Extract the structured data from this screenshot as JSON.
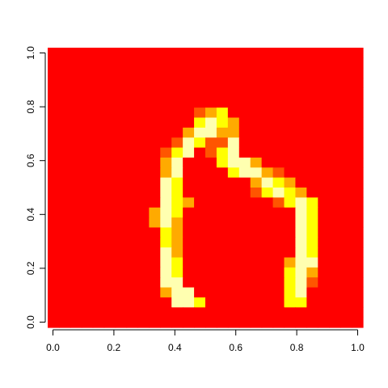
{
  "chart_data": {
    "type": "heatmap",
    "title": "",
    "xlabel": "",
    "ylabel": "",
    "xlim": [
      0,
      1
    ],
    "ylim": [
      0,
      1
    ],
    "grid": false,
    "x_ticks": [
      "0.0",
      "0.2",
      "0.4",
      "0.6",
      "0.8",
      "1.0"
    ],
    "y_ticks": [
      "0.0",
      "0.2",
      "0.4",
      "0.6",
      "0.8",
      "1.0"
    ],
    "x_tick_values": [
      0,
      0.2,
      0.4,
      0.6,
      0.8,
      1.0
    ],
    "y_tick_values": [
      0,
      0.2,
      0.4,
      0.6,
      0.8,
      1.0
    ],
    "nx": 28,
    "ny": 28,
    "colors": {
      "0": "#ff0000",
      "1": "#ff5500",
      "2": "#ffaa00",
      "3": "#ffff00",
      "4": "#ffffb0",
      "background": "#ffffff",
      "axis": "#000000"
    },
    "colormap": "heat (red = 0 to white = 4)",
    "rows_top_to_bottom": [
      "0000000000000000000000000000",
      "0000000000000000000000000000",
      "0000000000000000000000000000",
      "0000000000000000000000000000",
      "0000000000000000000000000000",
      "0000000000000000000000000000",
      "0000000000000123000000000000",
      "0000000000000343200000000000",
      "0000000000002442200000000000",
      "0000000000014311400000000000",
      "0000000000134013400000000000",
      "0000000000240003442000000000",
      "0000000000240000344210000000",
      "0000000000430000002432000000",
      "0000000000430000001343200000",
      "0000000000432000000013430000",
      "0000000002430000000000430000",
      "0000000002420000000000430000",
      "0000000000320000000000430000",
      "0000000000320000000000430000",
      "0000000000420000000000430000",
      "0000000000430000000002440000",
      "0000000000430000000003420000",
      "0000000000440000000003410000",
      "0000000000244000000003400000",
      "0000000000044300000003300000",
      "0000000000000000000000000000",
      "0000000000000000000000000000"
    ]
  }
}
